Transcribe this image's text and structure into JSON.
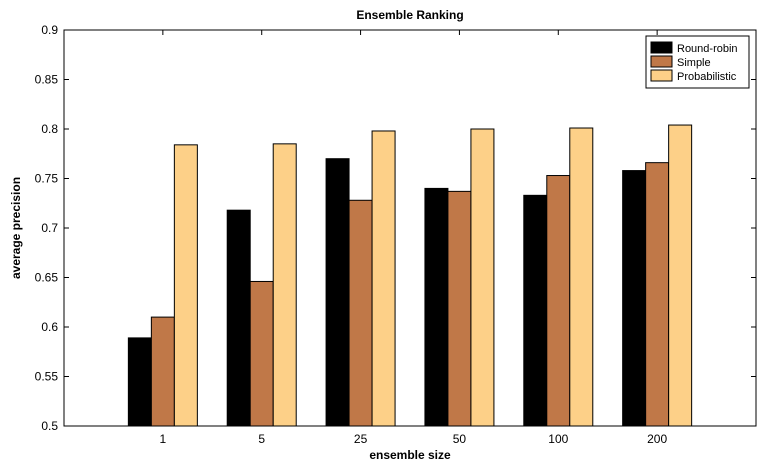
{
  "chart_data": {
    "type": "bar",
    "title": "Ensemble Ranking",
    "xlabel": "ensemble size",
    "ylabel": "average precision",
    "categories": [
      "1",
      "5",
      "25",
      "50",
      "100",
      "200"
    ],
    "ylim": [
      0.5,
      0.9
    ],
    "yticks": [
      0.5,
      0.55,
      0.6,
      0.65,
      0.7,
      0.75,
      0.8,
      0.85,
      0.9
    ],
    "ytick_labels": [
      "0.5",
      "0.55",
      "0.6",
      "0.65",
      "0.7",
      "0.75",
      "0.8",
      "0.85",
      "0.9"
    ],
    "grid": false,
    "legend_position": "top-right",
    "series": [
      {
        "name": "Round-robin",
        "color": "#000000",
        "values": [
          0.589,
          0.718,
          0.77,
          0.74,
          0.733,
          0.758
        ]
      },
      {
        "name": "Simple",
        "color": "#c07848",
        "values": [
          0.61,
          0.646,
          0.728,
          0.737,
          0.753,
          0.766
        ]
      },
      {
        "name": "Probabilistic",
        "color": "#fdd088",
        "values": [
          0.784,
          0.785,
          0.798,
          0.8,
          0.801,
          0.804
        ]
      }
    ]
  }
}
